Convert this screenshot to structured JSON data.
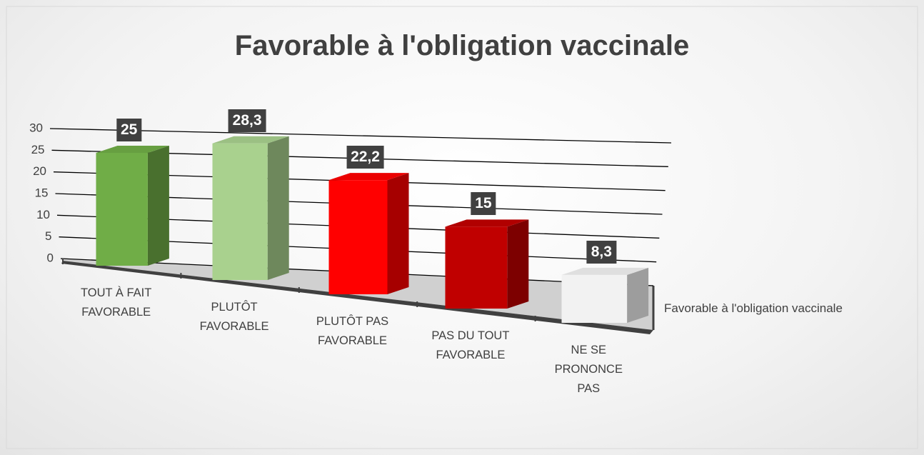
{
  "chart_data": {
    "type": "bar3d",
    "title": "Favorable à l'obligation vaccinale",
    "categories": [
      "TOUT À FAIT FAVORABLE",
      "PLUTÔT FAVORABLE",
      "PLUTÔT PAS FAVORABLE",
      "PAS DU TOUT FAVORABLE",
      "NE SE PRONONCE PAS"
    ],
    "series": [
      {
        "name": "Favorable à l'obligation vaccinale",
        "colors": [
          "#70ad47",
          "#a9d18e",
          "#ff0000",
          "#c00000",
          "#f2f2f2"
        ],
        "values": [
          25,
          28.3,
          22.2,
          15,
          8.3
        ],
        "value_labels": [
          "25",
          "28,3",
          "22,2",
          "15",
          "8,3"
        ]
      }
    ],
    "ylim": [
      0,
      30
    ],
    "yticks": [
      0,
      5,
      10,
      15,
      20,
      25,
      30
    ],
    "grid": true
  }
}
